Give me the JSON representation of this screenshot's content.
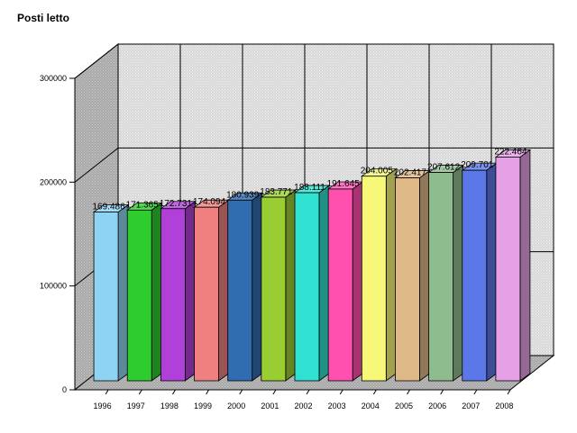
{
  "chart_data": {
    "type": "bar",
    "title": "Posti letto",
    "xlabel": "",
    "ylabel": "",
    "categories": [
      "1996",
      "1997",
      "1998",
      "1999",
      "2000",
      "2001",
      "2002",
      "2003",
      "2004",
      "2005",
      "2006",
      "2007",
      "2008"
    ],
    "values": [
      169486,
      171365,
      172731,
      174094,
      180939,
      183771,
      188111,
      191645,
      204005,
      202417,
      207612,
      209701,
      222464
    ],
    "value_labels": [
      "169.486",
      "171.365",
      "172.731",
      "174.094",
      "180.939",
      "183.771",
      "188.111",
      "191.645",
      "204.005",
      "202.417",
      "207.612",
      "209.701",
      "222.464"
    ],
    "y_ticks": [
      "0",
      "100000",
      "200000",
      "300000"
    ],
    "ylim": [
      0,
      300000
    ],
    "grid": true,
    "three_d": true,
    "colors": [
      "#8fd3f2",
      "#2ecc2e",
      "#b040d8",
      "#f08080",
      "#2f6db0",
      "#9acd32",
      "#30e0d0",
      "#ff50b0",
      "#f7f77a",
      "#deb887",
      "#8fbc8f",
      "#5b78e8",
      "#e6a0e6"
    ]
  }
}
